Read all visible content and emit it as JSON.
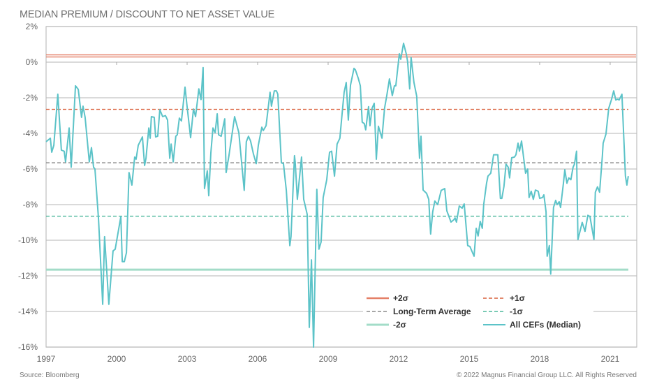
{
  "chart_data": {
    "type": "line",
    "title": "MEDIAN PREMIUM / DISCOUNT TO NET ASSET VALUE",
    "xlabel": "",
    "ylabel": "",
    "xlim": [
      1997,
      2022.13
    ],
    "ylim": [
      -16,
      2
    ],
    "grid": true,
    "x_ticks": [
      "1997",
      "2000",
      "2003",
      "2006",
      "2009",
      "2012",
      "2015",
      "2018",
      "2021"
    ],
    "x_tick_values": [
      1997,
      2000,
      2003,
      2006,
      2009,
      2012,
      2015,
      2018,
      2021
    ],
    "y_ticks": [
      "2%",
      "0%",
      "-2%",
      "-4%",
      "-6%",
      "-8%",
      "-10%",
      "-12%",
      "-14%",
      "-16%"
    ],
    "y_tick_values": [
      2,
      0,
      -2,
      -4,
      -6,
      -8,
      -10,
      -12,
      -14,
      -16
    ],
    "legend_position": "bottom-right",
    "reference_lines": [
      {
        "name": "+2σ",
        "value": 0.35,
        "style": "solid-double",
        "color": "#e47f66"
      },
      {
        "name": "+1σ",
        "value": -2.65,
        "style": "dashed",
        "color": "#d9603b"
      },
      {
        "name": "Long-Term Average",
        "value": -5.65,
        "style": "dashed",
        "color": "#8a8a8a"
      },
      {
        "name": "-1σ",
        "value": -8.65,
        "style": "dashed",
        "color": "#4db89b"
      },
      {
        "name": "-2σ",
        "value": -11.65,
        "style": "solid-thick",
        "color": "#a3dcc8"
      }
    ],
    "legend": [
      {
        "label": "+2σ",
        "ref": 0
      },
      {
        "label": "+1σ",
        "ref": 1
      },
      {
        "label": "Long-Term Average",
        "ref": 2
      },
      {
        "label": "-1σ",
        "ref": 3
      },
      {
        "label": "-2σ",
        "ref": 4
      },
      {
        "label": "All CEFs (Median)",
        "ref": "series"
      }
    ],
    "series": [
      {
        "name": "All CEFs (Median)",
        "color": "#5cc3c8",
        "points": [
          [
            1997.0,
            -4.47
          ],
          [
            1997.18,
            -4.27
          ],
          [
            1997.24,
            -5.06
          ],
          [
            1997.33,
            -4.67
          ],
          [
            1997.5,
            -1.8
          ],
          [
            1997.65,
            -4.94
          ],
          [
            1997.77,
            -5.0
          ],
          [
            1997.83,
            -5.6
          ],
          [
            1997.98,
            -3.7
          ],
          [
            1998.07,
            -5.9
          ],
          [
            1998.25,
            -1.33
          ],
          [
            1998.37,
            -1.53
          ],
          [
            1998.51,
            -3.1
          ],
          [
            1998.57,
            -2.47
          ],
          [
            1998.66,
            -3.1
          ],
          [
            1998.84,
            -5.6
          ],
          [
            1998.93,
            -4.8
          ],
          [
            1999.02,
            -5.9
          ],
          [
            1999.08,
            -6.0
          ],
          [
            1999.23,
            -8.8
          ],
          [
            1999.41,
            -13.6
          ],
          [
            1999.49,
            -9.8
          ],
          [
            1999.67,
            -13.6
          ],
          [
            1999.85,
            -10.6
          ],
          [
            1999.94,
            -10.5
          ],
          [
            2000.18,
            -8.67
          ],
          [
            2000.24,
            -11.2
          ],
          [
            2000.33,
            -11.2
          ],
          [
            2000.42,
            -10.7
          ],
          [
            2000.53,
            -6.2
          ],
          [
            2000.65,
            -6.9
          ],
          [
            2000.77,
            -5.33
          ],
          [
            2000.83,
            -5.45
          ],
          [
            2000.92,
            -4.67
          ],
          [
            2001.1,
            -4.2
          ],
          [
            2001.19,
            -5.8
          ],
          [
            2001.25,
            -5.4
          ],
          [
            2001.37,
            -3.7
          ],
          [
            2001.43,
            -4.27
          ],
          [
            2001.48,
            -3.06
          ],
          [
            2001.6,
            -3.1
          ],
          [
            2001.66,
            -4.2
          ],
          [
            2001.75,
            -4.16
          ],
          [
            2001.84,
            -2.67
          ],
          [
            2001.96,
            -3.06
          ],
          [
            2002.08,
            -3.0
          ],
          [
            2002.17,
            -3.25
          ],
          [
            2002.26,
            -5.4
          ],
          [
            2002.32,
            -4.6
          ],
          [
            2002.41,
            -5.6
          ],
          [
            2002.52,
            -4.16
          ],
          [
            2002.58,
            -4.08
          ],
          [
            2002.67,
            -3.14
          ],
          [
            2002.76,
            -3.3
          ],
          [
            2002.91,
            -1.4
          ],
          [
            2003.0,
            -2.5
          ],
          [
            2003.15,
            -4.24
          ],
          [
            2003.27,
            -2.63
          ],
          [
            2003.36,
            -3.06
          ],
          [
            2003.5,
            -1.5
          ],
          [
            2003.59,
            -2.1
          ],
          [
            2003.68,
            -0.3
          ],
          [
            2003.74,
            -7.1
          ],
          [
            2003.86,
            -6.1
          ],
          [
            2003.92,
            -7.5
          ],
          [
            2004.01,
            -5.1
          ],
          [
            2004.1,
            -3.7
          ],
          [
            2004.19,
            -3.96
          ],
          [
            2004.28,
            -2.9
          ],
          [
            2004.34,
            -4.08
          ],
          [
            2004.45,
            -4.16
          ],
          [
            2004.6,
            -3.18
          ],
          [
            2004.66,
            -6.2
          ],
          [
            2004.78,
            -5.25
          ],
          [
            2005.02,
            -3.06
          ],
          [
            2005.2,
            -3.96
          ],
          [
            2005.32,
            -5.65
          ],
          [
            2005.43,
            -7.2
          ],
          [
            2005.52,
            -4.47
          ],
          [
            2005.61,
            -4.16
          ],
          [
            2005.7,
            -4.43
          ],
          [
            2005.82,
            -5.14
          ],
          [
            2005.94,
            -5.7
          ],
          [
            2006.03,
            -4.67
          ],
          [
            2006.18,
            -3.65
          ],
          [
            2006.24,
            -3.84
          ],
          [
            2006.36,
            -3.57
          ],
          [
            2006.53,
            -1.69
          ],
          [
            2006.59,
            -2.47
          ],
          [
            2006.71,
            -1.61
          ],
          [
            2006.8,
            -1.61
          ],
          [
            2006.86,
            -1.8
          ],
          [
            2007.01,
            -5.65
          ],
          [
            2007.1,
            -5.7
          ],
          [
            2007.22,
            -7.2
          ],
          [
            2007.37,
            -10.3
          ],
          [
            2007.42,
            -9.8
          ],
          [
            2007.57,
            -5.25
          ],
          [
            2007.6,
            -5.6
          ],
          [
            2007.69,
            -7.7
          ],
          [
            2007.87,
            -5.33
          ],
          [
            2007.96,
            -7.7
          ],
          [
            2008.11,
            -8.55
          ],
          [
            2008.2,
            -14.9
          ],
          [
            2008.29,
            -11.1
          ],
          [
            2008.38,
            -16.0
          ],
          [
            2008.52,
            -7.14
          ],
          [
            2008.61,
            -10.5
          ],
          [
            2008.7,
            -10.1
          ],
          [
            2008.79,
            -7.6
          ],
          [
            2008.94,
            -6.6
          ],
          [
            2009.06,
            -5.06
          ],
          [
            2009.15,
            -5.0
          ],
          [
            2009.27,
            -6.4
          ],
          [
            2009.38,
            -4.6
          ],
          [
            2009.5,
            -4.27
          ],
          [
            2009.59,
            -2.98
          ],
          [
            2009.68,
            -1.69
          ],
          [
            2009.77,
            -1.14
          ],
          [
            2009.86,
            -3.25
          ],
          [
            2009.95,
            -1.3
          ],
          [
            2010.1,
            -0.35
          ],
          [
            2010.16,
            -0.43
          ],
          [
            2010.28,
            -0.9
          ],
          [
            2010.37,
            -1.33
          ],
          [
            2010.45,
            -3.37
          ],
          [
            2010.54,
            -3.45
          ],
          [
            2010.6,
            -3.8
          ],
          [
            2010.72,
            -2.5
          ],
          [
            2010.78,
            -3.57
          ],
          [
            2010.87,
            -2.59
          ],
          [
            2010.96,
            -2.31
          ],
          [
            2011.05,
            -5.45
          ],
          [
            2011.14,
            -3.6
          ],
          [
            2011.29,
            -4.27
          ],
          [
            2011.4,
            -2.59
          ],
          [
            2011.49,
            -1.92
          ],
          [
            2011.61,
            -0.94
          ],
          [
            2011.73,
            -1.88
          ],
          [
            2011.82,
            -1.33
          ],
          [
            2011.88,
            -1.33
          ],
          [
            2012.03,
            0.47
          ],
          [
            2012.09,
            0.16
          ],
          [
            2012.21,
            1.06
          ],
          [
            2012.33,
            0.43
          ],
          [
            2012.38,
            0.04
          ],
          [
            2012.47,
            -1.5
          ],
          [
            2012.53,
            0.27
          ],
          [
            2012.65,
            -1.14
          ],
          [
            2012.77,
            -1.92
          ],
          [
            2012.89,
            -5.4
          ],
          [
            2012.95,
            -4.16
          ],
          [
            2013.04,
            -7.18
          ],
          [
            2013.19,
            -7.37
          ],
          [
            2013.28,
            -7.7
          ],
          [
            2013.36,
            -9.65
          ],
          [
            2013.45,
            -8.4
          ],
          [
            2013.54,
            -7.8
          ],
          [
            2013.66,
            -8.0
          ],
          [
            2013.81,
            -7.2
          ],
          [
            2013.96,
            -7.1
          ],
          [
            2014.05,
            -8.35
          ],
          [
            2014.23,
            -8.98
          ],
          [
            2014.34,
            -8.86
          ],
          [
            2014.4,
            -8.75
          ],
          [
            2014.46,
            -8.98
          ],
          [
            2014.58,
            -8.08
          ],
          [
            2014.7,
            -8.2
          ],
          [
            2014.79,
            -7.96
          ],
          [
            2014.94,
            -10.3
          ],
          [
            2015.03,
            -10.35
          ],
          [
            2015.21,
            -10.9
          ],
          [
            2015.3,
            -9.33
          ],
          [
            2015.38,
            -9.76
          ],
          [
            2015.47,
            -8.94
          ],
          [
            2015.56,
            -9.33
          ],
          [
            2015.62,
            -8.0
          ],
          [
            2015.74,
            -6.8
          ],
          [
            2015.8,
            -6.4
          ],
          [
            2015.92,
            -6.24
          ],
          [
            2016.04,
            -5.2
          ],
          [
            2016.22,
            -5.2
          ],
          [
            2016.33,
            -7.65
          ],
          [
            2016.39,
            -7.65
          ],
          [
            2016.48,
            -6.98
          ],
          [
            2016.57,
            -5.73
          ],
          [
            2016.66,
            -5.9
          ],
          [
            2016.72,
            -6.5
          ],
          [
            2016.81,
            -5.37
          ],
          [
            2016.93,
            -5.33
          ],
          [
            2016.99,
            -5.2
          ],
          [
            2017.08,
            -4.55
          ],
          [
            2017.14,
            -5.0
          ],
          [
            2017.23,
            -4.43
          ],
          [
            2017.4,
            -6.24
          ],
          [
            2017.49,
            -6.0
          ],
          [
            2017.55,
            -7.6
          ],
          [
            2017.64,
            -7.25
          ],
          [
            2017.73,
            -7.7
          ],
          [
            2017.82,
            -7.18
          ],
          [
            2017.94,
            -7.25
          ],
          [
            2018.0,
            -7.65
          ],
          [
            2018.12,
            -7.6
          ],
          [
            2018.18,
            -7.45
          ],
          [
            2018.27,
            -8.4
          ],
          [
            2018.32,
            -10.9
          ],
          [
            2018.41,
            -10.3
          ],
          [
            2018.47,
            -11.9
          ],
          [
            2018.59,
            -8.16
          ],
          [
            2018.68,
            -7.76
          ],
          [
            2018.74,
            -8.0
          ],
          [
            2018.83,
            -7.84
          ],
          [
            2018.89,
            -8.16
          ],
          [
            2019.01,
            -6.8
          ],
          [
            2019.07,
            -6.04
          ],
          [
            2019.16,
            -6.8
          ],
          [
            2019.24,
            -6.5
          ],
          [
            2019.33,
            -6.6
          ],
          [
            2019.42,
            -5.9
          ],
          [
            2019.48,
            -5.73
          ],
          [
            2019.57,
            -5.0
          ],
          [
            2019.63,
            -9.96
          ],
          [
            2019.81,
            -9.0
          ],
          [
            2019.93,
            -9.5
          ],
          [
            2020.05,
            -8.6
          ],
          [
            2020.14,
            -8.67
          ],
          [
            2020.31,
            -9.96
          ],
          [
            2020.37,
            -7.3
          ],
          [
            2020.46,
            -7.0
          ],
          [
            2020.55,
            -7.3
          ],
          [
            2020.67,
            -5.25
          ],
          [
            2020.7,
            -4.55
          ],
          [
            2020.82,
            -4.04
          ],
          [
            2020.94,
            -2.59
          ],
          [
            2021.06,
            -2.08
          ],
          [
            2021.15,
            -1.61
          ],
          [
            2021.24,
            -2.12
          ],
          [
            2021.32,
            -2.08
          ],
          [
            2021.38,
            -2.12
          ],
          [
            2021.5,
            -1.8
          ],
          [
            2021.65,
            -6.4
          ],
          [
            2021.71,
            -6.9
          ],
          [
            2021.77,
            -6.4
          ]
        ]
      }
    ]
  },
  "footer": {
    "source": "Source: Bloomberg",
    "copyright": "© 2022 Magnus Financial Group LLC. All Rights Reserved"
  }
}
